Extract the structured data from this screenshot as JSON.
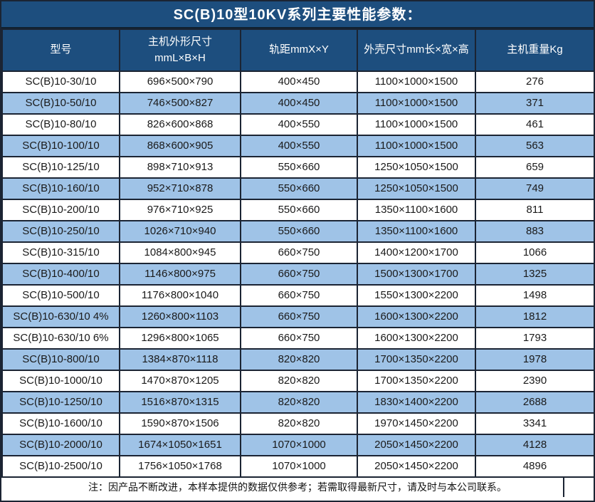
{
  "title": "SC(B)10型10KV系列主要性能参数：",
  "theme": {
    "title_bar_bg": "#1d4e7e",
    "header_bg": "#1d4e7e",
    "alt_row_bg": "#9fc3e7",
    "row_bg": "#ffffff",
    "border_color": "#1b2433",
    "header_text_color": "#ffffff",
    "cell_text_color": "#1a1a1a"
  },
  "table": {
    "headers": {
      "model": "型号",
      "host_dims_line1": "主机外形尺寸",
      "host_dims_line2": "mmL×B×H",
      "rail": "轨距mmX×Y",
      "shell": "外壳尺寸mm长×宽×高",
      "weight": "主机重量Kg"
    },
    "field_names": [
      "model",
      "host-dims",
      "rail-gauge",
      "shell-dims",
      "weight"
    ],
    "rows": [
      [
        "SC(B)10-30/10",
        "696×500×790",
        "400×450",
        "1100×1000×1500",
        "276"
      ],
      [
        "SC(B)10-50/10",
        "746×500×827",
        "400×450",
        "1100×1000×1500",
        "371"
      ],
      [
        "SC(B)10-80/10",
        "826×600×868",
        "400×550",
        "1100×1000×1500",
        "461"
      ],
      [
        "SC(B)10-100/10",
        "868×600×905",
        "400×550",
        "1100×1000×1500",
        "563"
      ],
      [
        "SC(B)10-125/10",
        "898×710×913",
        "550×660",
        "1250×1050×1500",
        "659"
      ],
      [
        "SC(B)10-160/10",
        "952×710×878",
        "550×660",
        "1250×1050×1500",
        "749"
      ],
      [
        "SC(B)10-200/10",
        "976×710×925",
        "550×660",
        "1350×1100×1600",
        "811"
      ],
      [
        "SC(B)10-250/10",
        "1026×710×940",
        "550×660",
        "1350×1100×1600",
        "883"
      ],
      [
        "SC(B)10-315/10",
        "1084×800×945",
        "660×750",
        "1400×1200×1700",
        "1066"
      ],
      [
        "SC(B)10-400/10",
        "1146×800×975",
        "660×750",
        "1500×1300×1700",
        "1325"
      ],
      [
        "SC(B)10-500/10",
        "1176×800×1040",
        "660×750",
        "1550×1300×2200",
        "1498"
      ],
      [
        "SC(B)10-630/10 4%",
        "1260×800×1103",
        "660×750",
        "1600×1300×2200",
        "1812"
      ],
      [
        "SC(B)10-630/10 6%",
        "1296×800×1065",
        "660×750",
        "1600×1300×2200",
        "1793"
      ],
      [
        "SC(B)10-800/10",
        "1384×870×1118",
        "820×820",
        "1700×1350×2200",
        "1978"
      ],
      [
        "SC(B)10-1000/10",
        "1470×870×1205",
        "820×820",
        "1700×1350×2200",
        "2390"
      ],
      [
        "SC(B)10-1250/10",
        "1516×870×1315",
        "820×820",
        "1830×1400×2200",
        "2688"
      ],
      [
        "SC(B)10-1600/10",
        "1590×870×1506",
        "820×820",
        "1970×1450×2200",
        "3341"
      ],
      [
        "SC(B)10-2000/10",
        "1674×1050×1651",
        "1070×1000",
        "2050×1450×2200",
        "4128"
      ],
      [
        "SC(B)10-2500/10",
        "1756×1050×1768",
        "1070×1000",
        "2050×1450×2200",
        "4896"
      ]
    ]
  },
  "note": "注：因产品不断改进，本样本提供的数据仅供参考；若需取得最新尺寸，请及时与本公司联系。"
}
